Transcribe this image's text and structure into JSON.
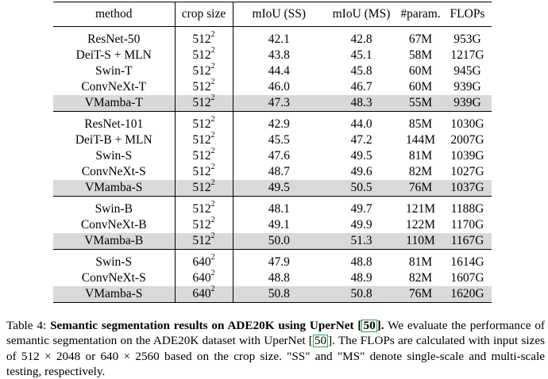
{
  "table": {
    "headers": [
      "method",
      "crop size",
      "mIoU (SS)",
      "mIoU (MS)",
      "#param.",
      "FLOPs"
    ],
    "groups": [
      [
        {
          "method": "ResNet-50",
          "crop": "512",
          "crop_exp": "2",
          "ss": "42.1",
          "ms": "42.8",
          "params": "67M",
          "flops": "953G"
        },
        {
          "method": "DeiT-S + MLN",
          "crop": "512",
          "crop_exp": "2",
          "ss": "43.8",
          "ms": "45.1",
          "params": "58M",
          "flops": "1217G"
        },
        {
          "method": "Swin-T",
          "crop": "512",
          "crop_exp": "2",
          "ss": "44.4",
          "ms": "45.8",
          "params": "60M",
          "flops": "945G"
        },
        {
          "method": "ConvNeXt-T",
          "crop": "512",
          "crop_exp": "2",
          "ss": "46.0",
          "ms": "46.7",
          "params": "60M",
          "flops": "939G"
        },
        {
          "method": "VMamba-T",
          "crop": "512",
          "crop_exp": "2",
          "ss": "47.3",
          "ms": "48.3",
          "params": "55M",
          "flops": "939G",
          "highlight": true
        }
      ],
      [
        {
          "method": "ResNet-101",
          "crop": "512",
          "crop_exp": "2",
          "ss": "42.9",
          "ms": "44.0",
          "params": "85M",
          "flops": "1030G"
        },
        {
          "method": "DeiT-B + MLN",
          "crop": "512",
          "crop_exp": "2",
          "ss": "45.5",
          "ms": "47.2",
          "params": "144M",
          "flops": "2007G"
        },
        {
          "method": "Swin-S",
          "crop": "512",
          "crop_exp": "2",
          "ss": "47.6",
          "ms": "49.5",
          "params": "81M",
          "flops": "1039G"
        },
        {
          "method": "ConvNeXt-S",
          "crop": "512",
          "crop_exp": "2",
          "ss": "48.7",
          "ms": "49.6",
          "params": "82M",
          "flops": "1027G"
        },
        {
          "method": "VMamba-S",
          "crop": "512",
          "crop_exp": "2",
          "ss": "49.5",
          "ms": "50.5",
          "params": "76M",
          "flops": "1037G",
          "highlight": true
        }
      ],
      [
        {
          "method": "Swin-B",
          "crop": "512",
          "crop_exp": "2",
          "ss": "48.1",
          "ms": "49.7",
          "params": "121M",
          "flops": "1188G"
        },
        {
          "method": "ConvNeXt-B",
          "crop": "512",
          "crop_exp": "2",
          "ss": "49.1",
          "ms": "49.9",
          "params": "122M",
          "flops": "1170G"
        },
        {
          "method": "VMamba-B",
          "crop": "512",
          "crop_exp": "2",
          "ss": "50.0",
          "ms": "51.3",
          "params": "110M",
          "flops": "1167G",
          "highlight": true
        }
      ],
      [
        {
          "method": "Swin-S",
          "crop": "640",
          "crop_exp": "2",
          "ss": "47.9",
          "ms": "48.8",
          "params": "81M",
          "flops": "1614G"
        },
        {
          "method": "ConvNeXt-S",
          "crop": "640",
          "crop_exp": "2",
          "ss": "48.8",
          "ms": "48.9",
          "params": "82M",
          "flops": "1607G"
        },
        {
          "method": "VMamba-S",
          "crop": "640",
          "crop_exp": "2",
          "ss": "50.8",
          "ms": "50.8",
          "params": "76M",
          "flops": "1620G",
          "highlight": true
        }
      ]
    ]
  },
  "caption": {
    "label": "Table 4:",
    "title": "Semantic segmentation results on ADE20K using UperNet [",
    "cite": "50",
    "title_end": "].",
    "text1": " We evaluate the performance of semantic segmentation on the ADE20K dataset with UperNet [",
    "cite2": "50",
    "text2": "]. The FLOPs are calculated with input sizes of 512 × 2048 or 640 × 2560 based on the crop size. \"SS\" and \"MS\" denote single-scale and multi-scale testing, respectively."
  }
}
